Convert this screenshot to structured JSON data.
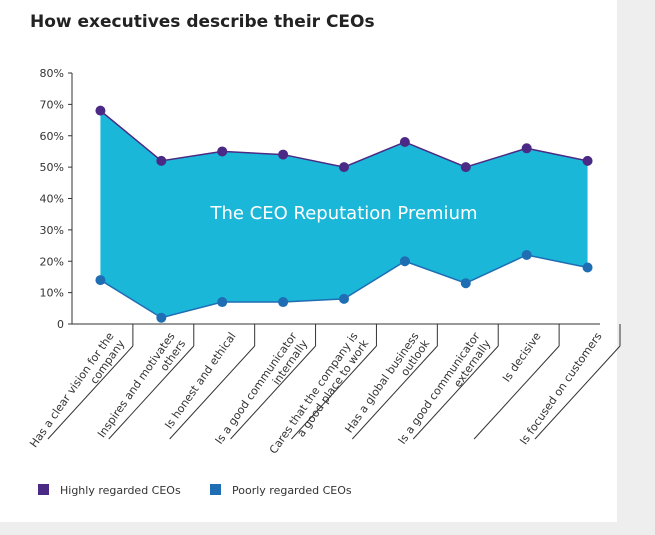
{
  "chart_data": {
    "type": "line",
    "title": "How executives describe their CEOs",
    "annotation": "The CEO Reputation Premium",
    "categories": [
      "Has a clear vision for the company",
      "Inspires and motivates others",
      "Is honest and ethical",
      "Is a good communicator internally",
      "Cares that the company is a good place to work",
      "Has a global business outlook",
      "Is a good communicator externally",
      "Is decisive",
      "Is focused on customers"
    ],
    "series": [
      {
        "name": "Highly regarded CEOs",
        "color": "#4b2a85",
        "values": [
          68,
          52,
          55,
          54,
          50,
          58,
          50,
          56,
          52
        ]
      },
      {
        "name": "Poorly regarded CEOs",
        "color": "#1f6db3",
        "values": [
          14,
          2,
          7,
          7,
          8,
          20,
          13,
          22,
          18
        ]
      }
    ],
    "fill_color": "#1bb7d9",
    "ylim": [
      0,
      80
    ],
    "yticks": [
      0,
      {
        "value": 10,
        "label": "10%"
      },
      {
        "value": 20,
        "label": "20%"
      },
      {
        "value": 30,
        "label": "30%"
      },
      {
        "value": 40,
        "label": "40%"
      },
      {
        "value": 50,
        "label": "50%"
      },
      {
        "value": 60,
        "label": "60%"
      },
      {
        "value": 70,
        "label": "70%"
      },
      {
        "value": 80,
        "label": "80%"
      }
    ],
    "legend": "bottom"
  }
}
